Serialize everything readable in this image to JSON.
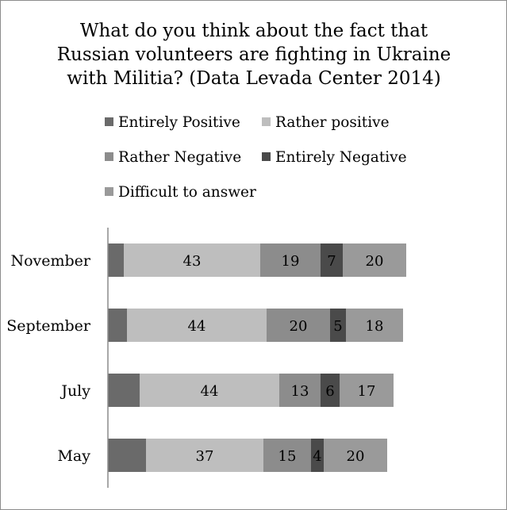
{
  "chart_data": {
    "type": "bar",
    "orientation": "horizontal",
    "stacked": true,
    "title_lines": [
      "What do you think about the fact that",
      "Russian volunteers are fighting in Ukraine",
      "with Militia? (Data Levada Center 2014)"
    ],
    "categories": [
      "November",
      "September",
      "July",
      "May"
    ],
    "series": [
      {
        "name": "Entirely Positive",
        "color": "#6a6a6a",
        "values": [
          5,
          6,
          10,
          12
        ],
        "labels": [
          "",
          "",
          "",
          ""
        ]
      },
      {
        "name": "Rather positive",
        "color": "#bebebe",
        "values": [
          43,
          44,
          44,
          37
        ],
        "labels": [
          "43",
          "44",
          "44",
          "37"
        ]
      },
      {
        "name": "Rather Negative",
        "color": "#8c8c8c",
        "values": [
          19,
          20,
          13,
          15
        ],
        "labels": [
          "19",
          "20",
          "13",
          "15"
        ]
      },
      {
        "name": "Entirely Negative",
        "color": "#4a4a4a",
        "values": [
          7,
          5,
          6,
          4
        ],
        "labels": [
          "7",
          "5",
          "6",
          "4"
        ]
      },
      {
        "name": "Difficult to answer",
        "color": "#9a9a9a",
        "values": [
          20,
          18,
          17,
          20
        ],
        "labels": [
          "20",
          "18",
          "17",
          "20"
        ]
      }
    ],
    "legend_position": "top",
    "grid": false,
    "xlim": [
      0,
      100
    ]
  }
}
